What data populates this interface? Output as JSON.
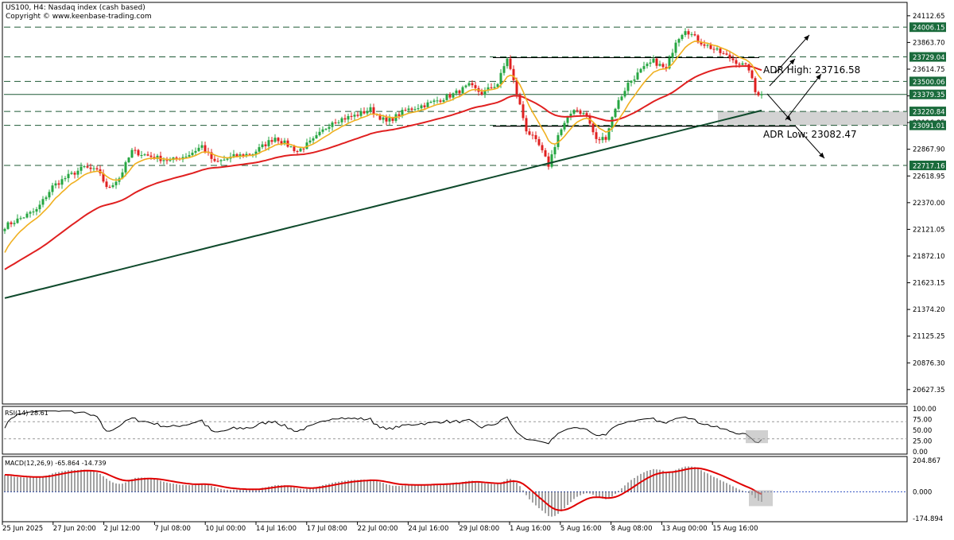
{
  "header": {
    "title": "US100, H4:  Nasdaq index (cash based)",
    "copyright": "Copyright © www.keenbase-trading.com"
  },
  "colors": {
    "bull": "#26a641",
    "bear": "#e02020",
    "ma_fast": "#f0b020",
    "ma_mid": "#e02020",
    "ma_slow": "#0f4a2c",
    "level_line": "#1f5a36",
    "axis_tag": "#1a6b3c",
    "macd_signal": "#e00000"
  },
  "chart_data": [
    {
      "type": "candlestick",
      "name": "price",
      "ylim": [
        20500,
        24230
      ],
      "y_ticks": [
        "24112.65",
        "23863.70",
        "23614.75",
        "23365.80",
        "23116.85",
        "22867.90",
        "22618.95",
        "22370.00",
        "22121.05",
        "21872.10",
        "21623.15",
        "21374.20",
        "21125.25",
        "20876.30",
        "20627.35"
      ],
      "x_ticks": [
        "25 Jun 2025",
        "27 Jun 20:00",
        "2 Jul 12:00",
        "7 Jul 08:00",
        "10 Jul 00:00",
        "14 Jul 16:00",
        "17 Jul 08:00",
        "22 Jul 00:00",
        "24 Jul 16:00",
        "29 Jul 08:00",
        "1 Aug 16:00",
        "5 Aug 16:00",
        "8 Aug 08:00",
        "13 Aug 00:00",
        "15 Aug 16:00"
      ],
      "price_levels": [
        {
          "label": "24006.15",
          "value": 24006.15
        },
        {
          "label": "23729.04",
          "value": 23729.04
        },
        {
          "label": "23500.06",
          "value": 23500.06
        },
        {
          "label": "23379.35",
          "value": 23379.35
        },
        {
          "label": "23220.84",
          "value": 23220.84
        },
        {
          "label": "23091.01",
          "value": 23091.01
        },
        {
          "label": "22717.16",
          "value": 22717.16
        }
      ],
      "close_anchors": [
        [
          0,
          22150
        ],
        [
          10,
          22300
        ],
        [
          15,
          22520
        ],
        [
          19,
          22600
        ],
        [
          25,
          22700
        ],
        [
          30,
          22650
        ],
        [
          32,
          22500
        ],
        [
          36,
          22600
        ],
        [
          40,
          22850
        ],
        [
          46,
          22800
        ],
        [
          52,
          22760
        ],
        [
          58,
          22820
        ],
        [
          62,
          22900
        ],
        [
          66,
          22740
        ],
        [
          72,
          22800
        ],
        [
          78,
          22830
        ],
        [
          85,
          22980
        ],
        [
          92,
          22850
        ],
        [
          97,
          22950
        ],
        [
          103,
          23130
        ],
        [
          110,
          23180
        ],
        [
          115,
          23240
        ],
        [
          120,
          23120
        ],
        [
          126,
          23230
        ],
        [
          134,
          23300
        ],
        [
          141,
          23380
        ],
        [
          146,
          23460
        ],
        [
          150,
          23390
        ],
        [
          155,
          23480
        ],
        [
          158,
          23720
        ],
        [
          160,
          23500
        ],
        [
          164,
          23050
        ],
        [
          168,
          22900
        ],
        [
          171,
          22720
        ],
        [
          174,
          23000
        ],
        [
          179,
          23250
        ],
        [
          183,
          23180
        ],
        [
          186,
          22950
        ],
        [
          189,
          22980
        ],
        [
          192,
          23260
        ],
        [
          196,
          23480
        ],
        [
          200,
          23600
        ],
        [
          204,
          23690
        ],
        [
          208,
          23610
        ],
        [
          211,
          23880
        ],
        [
          214,
          23990
        ],
        [
          218,
          23880
        ],
        [
          223,
          23800
        ],
        [
          228,
          23720
        ],
        [
          234,
          23620
        ],
        [
          236,
          23400
        ],
        [
          238,
          23380
        ]
      ],
      "ema_fast_start": 21850,
      "ema_mid_start": 21730,
      "ema_slow_start": 21480,
      "ema_slow_slope_per_bar": 7.35
    },
    {
      "type": "oscillator",
      "name": "RSI(14)",
      "label": "RSI(14) 28.61",
      "value": 28.61,
      "ylim": [
        0,
        100
      ],
      "y_ticks": [
        "100.00",
        "75.00",
        "50.00",
        "25.00",
        "0.00"
      ],
      "levels": [
        30,
        70
      ]
    },
    {
      "type": "histogram_line",
      "name": "MACD(12,26,9)",
      "label": "MACD(12,26,9) -65.864 -14.739",
      "macd": -65.864,
      "signal": -14.739,
      "ylim": [
        -180,
        210
      ],
      "y_ticks": [
        "204.867",
        "0.000",
        "-174.894"
      ]
    }
  ],
  "annotations": {
    "adr_high_label": "ADR High: 23716.58",
    "adr_low_label": "ADR Low: 23082.47"
  }
}
